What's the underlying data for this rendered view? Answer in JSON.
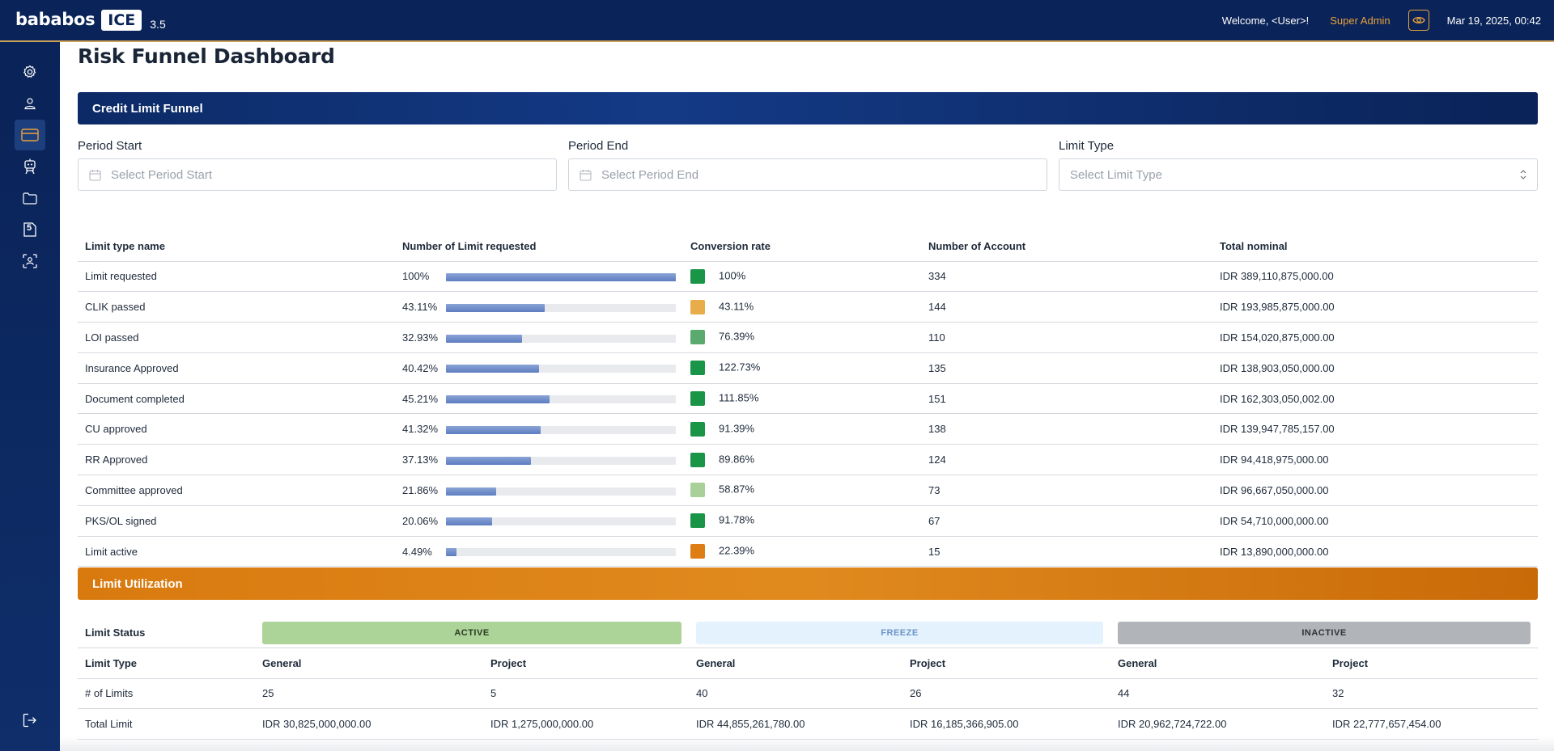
{
  "header": {
    "logo_text": "bababos",
    "logo_badge": "ICE",
    "version": "3.5",
    "welcome": "Welcome, <User>!",
    "role": "Super Admin",
    "datetime": "Mar 19, 2025, 00:42"
  },
  "sidebar": {
    "items": [
      {
        "icon": "gear-icon"
      },
      {
        "icon": "user-icon"
      },
      {
        "icon": "credit-card-icon"
      },
      {
        "icon": "robot-icon"
      },
      {
        "icon": "folder-icon"
      },
      {
        "icon": "five-badge-icon",
        "label": "5"
      },
      {
        "icon": "face-scan-icon"
      }
    ],
    "logout_icon": "logout-icon"
  },
  "page": {
    "title": "Risk Funnel Dashboard"
  },
  "credit_funnel": {
    "title": "Credit Limit Funnel",
    "filters": {
      "period_start_label": "Period Start",
      "period_start_placeholder": "Select Period Start",
      "period_end_label": "Period End",
      "period_end_placeholder": "Select Period End",
      "limit_type_label": "Limit Type",
      "limit_type_placeholder": "Select Limit Type"
    },
    "columns": [
      "Limit type name",
      "Number of Limit requested",
      "Conversion rate",
      "Number of Account",
      "Total nominal"
    ],
    "rows": [
      {
        "name": "Limit requested",
        "requested_pct": "100%",
        "requested_value": 100,
        "conversion": "100%",
        "color": "#1a9446",
        "accounts": "334",
        "nominal": "IDR 389,110,875,000.00"
      },
      {
        "name": "CLIK passed",
        "requested_pct": "43.11%",
        "requested_value": 43.11,
        "conversion": "43.11%",
        "color": "#e8ad48",
        "accounts": "144",
        "nominal": "IDR 193,985,875,000.00"
      },
      {
        "name": "LOI passed",
        "requested_pct": "32.93%",
        "requested_value": 32.93,
        "conversion": "76.39%",
        "color": "#5aaa6e",
        "accounts": "110",
        "nominal": "IDR 154,020,875,000.00"
      },
      {
        "name": "Insurance Approved",
        "requested_pct": "40.42%",
        "requested_value": 40.42,
        "conversion": "122.73%",
        "color": "#1a9446",
        "accounts": "135",
        "nominal": "IDR 138,903,050,000.00"
      },
      {
        "name": "Document completed",
        "requested_pct": "45.21%",
        "requested_value": 45.21,
        "conversion": "111.85%",
        "color": "#1a9446",
        "accounts": "151",
        "nominal": "IDR 162,303,050,002.00"
      },
      {
        "name": "CU approved",
        "requested_pct": "41.32%",
        "requested_value": 41.32,
        "conversion": "91.39%",
        "color": "#1a9446",
        "accounts": "138",
        "nominal": "IDR 139,947,785,157.00"
      },
      {
        "name": "RR Approved",
        "requested_pct": "37.13%",
        "requested_value": 37.13,
        "conversion": "89.86%",
        "color": "#1a9446",
        "accounts": "124",
        "nominal": "IDR 94,418,975,000.00"
      },
      {
        "name": "Committee approved",
        "requested_pct": "21.86%",
        "requested_value": 21.86,
        "conversion": "58.87%",
        "color": "#a8d098",
        "accounts": "73",
        "nominal": "IDR 96,667,050,000.00"
      },
      {
        "name": "PKS/OL signed",
        "requested_pct": "20.06%",
        "requested_value": 20.06,
        "conversion": "91.78%",
        "color": "#1a9446",
        "accounts": "67",
        "nominal": "IDR 54,710,000,000.00"
      },
      {
        "name": "Limit active",
        "requested_pct": "4.49%",
        "requested_value": 4.49,
        "conversion": "22.39%",
        "color": "#de7d14",
        "accounts": "15",
        "nominal": "IDR 13,890,000,000.00"
      }
    ]
  },
  "limit_utilization": {
    "title": "Limit Utilization",
    "status_label": "Limit Status",
    "statuses": [
      "ACTIVE",
      "FREEZE",
      "INACTIVE"
    ],
    "type_label": "Limit Type",
    "types": [
      "General",
      "Project",
      "General",
      "Project",
      "General",
      "Project"
    ],
    "rows": [
      {
        "label": "# of Limits",
        "values": [
          "25",
          "5",
          "40",
          "26",
          "44",
          "32"
        ]
      },
      {
        "label": "Total Limit",
        "values": [
          "IDR 30,825,000,000.00",
          "IDR 1,275,000,000.00",
          "IDR 44,855,261,780.00",
          "IDR 16,185,366,905.00",
          "IDR 20,962,724,722.00",
          "IDR 22,777,657,454.00"
        ]
      }
    ]
  }
}
